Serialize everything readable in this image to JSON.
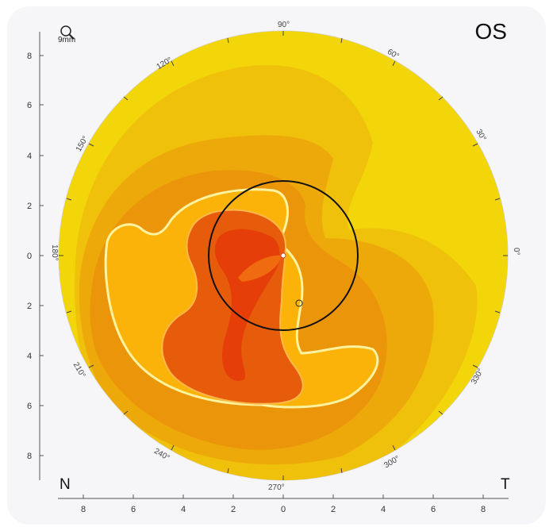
{
  "eye": "OS",
  "orientation": {
    "left": "N",
    "right": "T"
  },
  "zoom": {
    "icon": "magnifier-icon",
    "label": "9mm"
  },
  "x_axis_ticks": [
    "8",
    "6",
    "4",
    "2",
    "0",
    "2",
    "4",
    "6",
    "8"
  ],
  "y_axis_ticks": [
    "8",
    "6",
    "4",
    "2",
    "0",
    "2",
    "4",
    "6",
    "8"
  ],
  "degree_labels": [
    "90°",
    "60°",
    "30°",
    "0°",
    "330°",
    "300°",
    "270°",
    "240°",
    "210°",
    "180°",
    "150°",
    "120°"
  ],
  "colors": {
    "background": "#f6f6f8",
    "map_levels": [
      "#ecec10",
      "#f2d60a",
      "#f0c10b",
      "#eda90a",
      "#eb950b",
      "#fbb30a",
      "#e75c0b",
      "#e53e08"
    ],
    "contour": "#fff3a0",
    "pupil_circle": "#111111"
  }
}
